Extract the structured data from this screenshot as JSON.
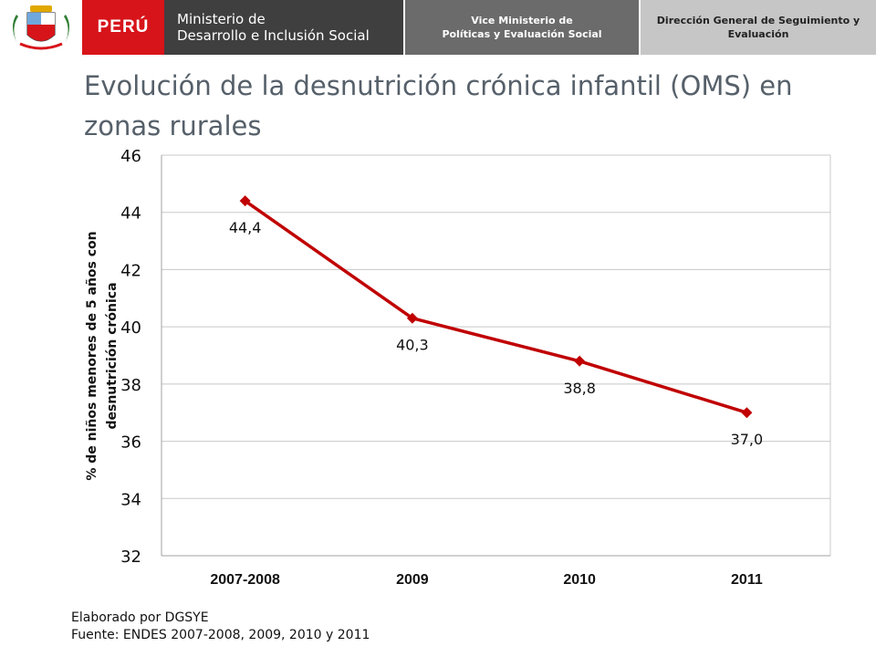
{
  "header": {
    "peru": "PERÚ",
    "ministry_line1": "Ministerio de",
    "ministry_line2": "Desarrollo e Inclusión Social",
    "vice_line1": "Vice Ministerio de",
    "vice_line2": "Políticas y Evaluación Social",
    "direction_line1": "Dirección General de Seguimiento y",
    "direction_line2": "Evaluación",
    "emblem_icon": "peru-coat-of-arms-icon"
  },
  "title": "Evolución de la desnutrición crónica infantil (OMS) en zonas rurales",
  "chart_data": {
    "type": "line",
    "categories": [
      "2007-2008",
      "2009",
      "2010",
      "2011"
    ],
    "series": [
      {
        "values": [
          44.4,
          40.3,
          38.8,
          37.0
        ],
        "color": "#c00000"
      }
    ],
    "data_labels": [
      "44,4",
      "40,3",
      "38,8",
      "37,0"
    ],
    "ylabel_line1": "% de niños menores de 5 años con",
    "ylabel_line2": "desnutrición crónica",
    "ylim": [
      32,
      46
    ],
    "yticks": [
      32,
      34,
      36,
      38,
      40,
      42,
      44,
      46
    ],
    "grid": true,
    "legend": false
  },
  "footer": {
    "line1": "Elaborado por DGSYE",
    "line2": "Fuente: ENDES 2007-2008, 2009, 2010 y 2011"
  }
}
